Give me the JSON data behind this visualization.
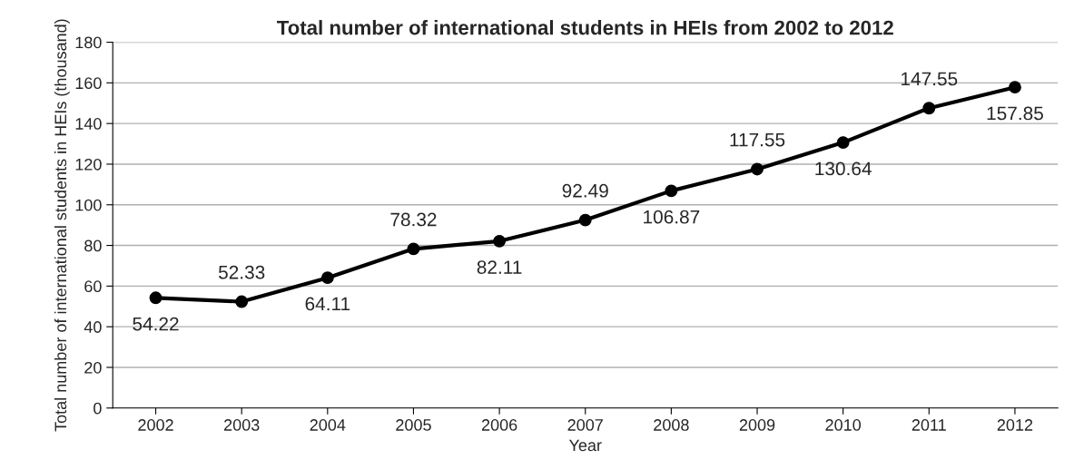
{
  "chart_data": {
    "type": "line",
    "title": "Total number of international students in HEIs from 2002 to 2012",
    "xlabel": "Year",
    "ylabel": "Total number of international students in HEIs (thousand)",
    "categories": [
      "2002",
      "2003",
      "2004",
      "2005",
      "2006",
      "2007",
      "2008",
      "2009",
      "2010",
      "2011",
      "2012"
    ],
    "series": [
      {
        "color": "#000000",
        "values": [
          54.22,
          52.33,
          64.11,
          78.32,
          82.11,
          92.49,
          106.87,
          117.55,
          130.64,
          147.55,
          157.85
        ]
      }
    ],
    "ylim": [
      0,
      180
    ],
    "yticks": [
      0,
      20,
      40,
      60,
      80,
      100,
      120,
      140,
      160,
      180
    ],
    "grid": "y",
    "marker": "circle",
    "line_style": "solid",
    "data_labels": true
  }
}
